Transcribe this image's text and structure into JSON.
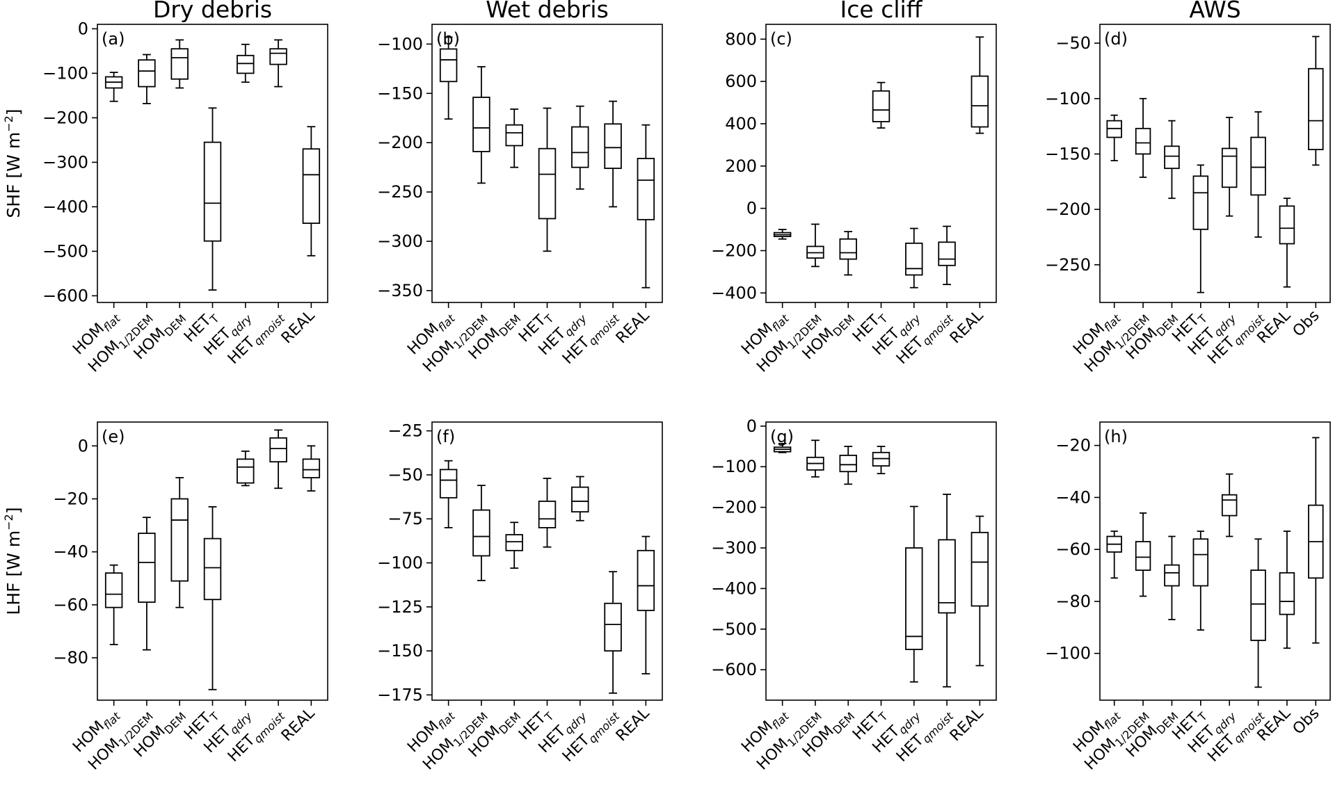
{
  "chart_data": [
    {
      "panel": "(a)",
      "title": "Dry debris",
      "ylabel": "SHF [W m−2]",
      "type": "box",
      "ylim": [
        -615,
        10
      ],
      "yticks": [
        0,
        -100,
        -200,
        -300,
        -400,
        -500,
        -600
      ],
      "categories": [
        "HOM_flat",
        "HOM_1/2DEM",
        "HOM_DEM",
        "HET_T",
        "HET_qdry",
        "HET_qmoist",
        "REAL"
      ],
      "boxes": [
        {
          "wlo": -163,
          "q1": -133,
          "med": -120,
          "q3": -108,
          "whi": -98
        },
        {
          "wlo": -168,
          "q1": -130,
          "med": -95,
          "q3": -70,
          "whi": -58
        },
        {
          "wlo": -133,
          "q1": -113,
          "med": -65,
          "q3": -45,
          "whi": -25
        },
        {
          "wlo": -587,
          "q1": -477,
          "med": -392,
          "q3": -255,
          "whi": -178
        },
        {
          "wlo": -120,
          "q1": -100,
          "med": -78,
          "q3": -60,
          "whi": -35
        },
        {
          "wlo": -130,
          "q1": -80,
          "med": -55,
          "q3": -45,
          "whi": -25
        },
        {
          "wlo": -510,
          "q1": -437,
          "med": -328,
          "q3": -270,
          "whi": -220
        }
      ]
    },
    {
      "panel": "(b)",
      "title": "Wet debris",
      "ylabel": "",
      "type": "box",
      "ylim": [
        -362,
        -80
      ],
      "yticks": [
        -100,
        -150,
        -200,
        -250,
        -300,
        -350
      ],
      "categories": [
        "HOM_flat",
        "HOM_1/2DEM",
        "HOM_DEM",
        "HET_T",
        "HET_qdry",
        "HET_qmoist",
        "REAL"
      ],
      "boxes": [
        {
          "wlo": -176,
          "q1": -138,
          "med": -116,
          "q3": -105,
          "whi": -93
        },
        {
          "wlo": -241,
          "q1": -209,
          "med": -185,
          "q3": -154,
          "whi": -123
        },
        {
          "wlo": -225,
          "q1": -203,
          "med": -190,
          "q3": -182,
          "whi": -166
        },
        {
          "wlo": -310,
          "q1": -277,
          "med": -232,
          "q3": -206,
          "whi": -165
        },
        {
          "wlo": -247,
          "q1": -225,
          "med": -210,
          "q3": -184,
          "whi": -163
        },
        {
          "wlo": -265,
          "q1": -226,
          "med": -205,
          "q3": -181,
          "whi": -158
        },
        {
          "wlo": -347,
          "q1": -278,
          "med": -238,
          "q3": -216,
          "whi": -182
        }
      ]
    },
    {
      "panel": "(c)",
      "title": "Ice cliff",
      "ylabel": "",
      "type": "box",
      "ylim": [
        -445,
        870
      ],
      "yticks": [
        800,
        600,
        400,
        200,
        0,
        -200,
        -400
      ],
      "categories": [
        "HOM_flat",
        "HOM_1/2DEM",
        "HOM_DEM",
        "HET_T",
        "HET_qdry",
        "HET_qmoist",
        "REAL"
      ],
      "boxes": [
        {
          "wlo": -145,
          "q1": -133,
          "med": -125,
          "q3": -115,
          "whi": -100
        },
        {
          "wlo": -275,
          "q1": -235,
          "med": -210,
          "q3": -180,
          "whi": -75
        },
        {
          "wlo": -315,
          "q1": -240,
          "med": -210,
          "q3": -145,
          "whi": -110
        },
        {
          "wlo": 380,
          "q1": 410,
          "med": 465,
          "q3": 555,
          "whi": 595
        },
        {
          "wlo": -375,
          "q1": -315,
          "med": -285,
          "q3": -165,
          "whi": -95
        },
        {
          "wlo": -360,
          "q1": -270,
          "med": -240,
          "q3": -160,
          "whi": -85
        },
        {
          "wlo": 355,
          "q1": 385,
          "med": 485,
          "q3": 625,
          "whi": 810
        }
      ]
    },
    {
      "panel": "(d)",
      "title": "AWS",
      "ylabel": "",
      "type": "box",
      "ylim": [
        -284,
        -33
      ],
      "yticks": [
        -50,
        -100,
        -150,
        -200,
        -250
      ],
      "categories": [
        "HOM_flat",
        "HOM_1/2DEM",
        "HOM_DEM",
        "HET_T",
        "HET_qdry",
        "HET_qmoist",
        "REAL",
        "Obs"
      ],
      "boxes": [
        {
          "wlo": -156,
          "q1": -135,
          "med": -127,
          "q3": -120,
          "whi": -115
        },
        {
          "wlo": -171,
          "q1": -150,
          "med": -140,
          "q3": -127,
          "whi": -100
        },
        {
          "wlo": -190,
          "q1": -163,
          "med": -152,
          "q3": -143,
          "whi": -120
        },
        {
          "wlo": -275,
          "q1": -218,
          "med": -185,
          "q3": -170,
          "whi": -160
        },
        {
          "wlo": -206,
          "q1": -180,
          "med": -152,
          "q3": -145,
          "whi": -117
        },
        {
          "wlo": -225,
          "q1": -187,
          "med": -162,
          "q3": -135,
          "whi": -112
        },
        {
          "wlo": -270,
          "q1": -231,
          "med": -217,
          "q3": -197,
          "whi": -190
        },
        {
          "wlo": -160,
          "q1": -146,
          "med": -120,
          "q3": -73,
          "whi": -44
        }
      ]
    },
    {
      "panel": "(e)",
      "title": "",
      "ylabel": "LHF [W m−2]",
      "type": "box",
      "ylim": [
        -96,
        9
      ],
      "yticks": [
        0,
        -20,
        -40,
        -60,
        -80
      ],
      "categories": [
        "HOM_flat",
        "HOM_1/2DEM",
        "HOM_DEM",
        "HET_T",
        "HET_qdry",
        "HET_qmoist",
        "REAL"
      ],
      "boxes": [
        {
          "wlo": -75,
          "q1": -61,
          "med": -56,
          "q3": -48,
          "whi": -45
        },
        {
          "wlo": -77,
          "q1": -59,
          "med": -44,
          "q3": -33,
          "whi": -27
        },
        {
          "wlo": -61,
          "q1": -51,
          "med": -28,
          "q3": -20,
          "whi": -12
        },
        {
          "wlo": -92,
          "q1": -58,
          "med": -46,
          "q3": -35,
          "whi": -23
        },
        {
          "wlo": -15,
          "q1": -14,
          "med": -8,
          "q3": -5,
          "whi": -2
        },
        {
          "wlo": -16,
          "q1": -6,
          "med": -1,
          "q3": 3,
          "whi": 6
        },
        {
          "wlo": -17,
          "q1": -12,
          "med": -9,
          "q3": -5,
          "whi": 0
        }
      ]
    },
    {
      "panel": "(f)",
      "title": "",
      "ylabel": "",
      "type": "box",
      "ylim": [
        -178,
        -20
      ],
      "yticks": [
        -25,
        -50,
        -75,
        -100,
        -125,
        -150,
        -175
      ],
      "categories": [
        "HOM_flat",
        "HOM_1/2DEM",
        "HOM_DEM",
        "HET_T",
        "HET_qdry",
        "HET_qmoist",
        "REAL"
      ],
      "boxes": [
        {
          "wlo": -80,
          "q1": -63,
          "med": -53,
          "q3": -47,
          "whi": -42
        },
        {
          "wlo": -110,
          "q1": -96,
          "med": -85,
          "q3": -70,
          "whi": -56
        },
        {
          "wlo": -103,
          "q1": -93,
          "med": -88,
          "q3": -84,
          "whi": -77
        },
        {
          "wlo": -91,
          "q1": -80,
          "med": -75,
          "q3": -65,
          "whi": -52
        },
        {
          "wlo": -76,
          "q1": -71,
          "med": -65,
          "q3": -57,
          "whi": -51
        },
        {
          "wlo": -174,
          "q1": -150,
          "med": -135,
          "q3": -123,
          "whi": -105
        },
        {
          "wlo": -163,
          "q1": -127,
          "med": -113,
          "q3": -93,
          "whi": -85
        }
      ]
    },
    {
      "panel": "(g)",
      "title": "",
      "ylabel": "",
      "type": "box",
      "ylim": [
        -675,
        10
      ],
      "yticks": [
        0,
        -100,
        -200,
        -300,
        -400,
        -500,
        -600
      ],
      "categories": [
        "HOM_flat",
        "HOM_1/2DEM",
        "HOM_DEM",
        "HET_T",
        "HET_qdry",
        "HET_qmoist",
        "REAL"
      ],
      "boxes": [
        {
          "wlo": -65,
          "q1": -63,
          "med": -57,
          "q3": -52,
          "whi": -43
        },
        {
          "wlo": -125,
          "q1": -108,
          "med": -92,
          "q3": -77,
          "whi": -35
        },
        {
          "wlo": -143,
          "q1": -112,
          "med": -95,
          "q3": -72,
          "whi": -50
        },
        {
          "wlo": -117,
          "q1": -98,
          "med": -80,
          "q3": -65,
          "whi": -50
        },
        {
          "wlo": -630,
          "q1": -550,
          "med": -518,
          "q3": -300,
          "whi": -198
        },
        {
          "wlo": -642,
          "q1": -460,
          "med": -435,
          "q3": -280,
          "whi": -168
        },
        {
          "wlo": -590,
          "q1": -443,
          "med": -335,
          "q3": -262,
          "whi": -222
        }
      ]
    },
    {
      "panel": "(h)",
      "title": "",
      "ylabel": "",
      "type": "box",
      "ylim": [
        -118,
        -11
      ],
      "yticks": [
        -20,
        -40,
        -60,
        -80,
        -100
      ],
      "categories": [
        "HOM_flat",
        "HOM_1/2DEM",
        "HOM_DEM",
        "HET_T",
        "HET_qdry",
        "HET_qmoist",
        "REAL",
        "Obs"
      ],
      "boxes": [
        {
          "wlo": -71,
          "q1": -61,
          "med": -58,
          "q3": -55,
          "whi": -53
        },
        {
          "wlo": -78,
          "q1": -68,
          "med": -63,
          "q3": -57,
          "whi": -46
        },
        {
          "wlo": -87,
          "q1": -74,
          "med": -69,
          "q3": -66,
          "whi": -55
        },
        {
          "wlo": -91,
          "q1": -74,
          "med": -62,
          "q3": -56,
          "whi": -53
        },
        {
          "wlo": -55,
          "q1": -47,
          "med": -41,
          "q3": -39,
          "whi": -31
        },
        {
          "wlo": -113,
          "q1": -95,
          "med": -81,
          "q3": -68,
          "whi": -56
        },
        {
          "wlo": -98,
          "q1": -85,
          "med": -80,
          "q3": -69,
          "whi": -53
        },
        {
          "wlo": -96,
          "q1": -71,
          "med": -57,
          "q3": -43,
          "whi": -17
        }
      ]
    }
  ]
}
